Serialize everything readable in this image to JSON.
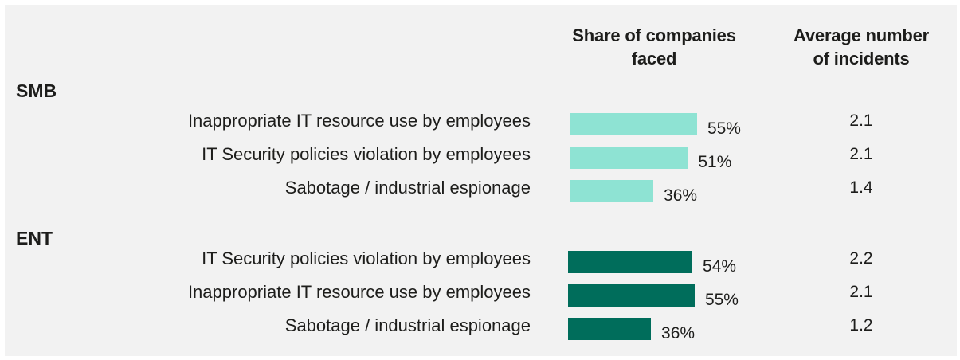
{
  "headers": {
    "share_line1": "Share of companies",
    "share_line2": "faced",
    "avg_line1": "Average number",
    "avg_line2": "of incidents"
  },
  "colors": {
    "smb_bar": "#8ee3d3",
    "ent_bar": "#006d5b",
    "background": "#f2f2f2"
  },
  "chart_data": {
    "type": "bar",
    "orientation": "horizontal",
    "xlim": [
      0,
      100
    ],
    "groups": [
      {
        "name": "SMB",
        "color": "#8ee3d3",
        "rows": [
          {
            "label": "Inappropriate IT resource use by employees",
            "value": 55,
            "value_label": "55%",
            "avg_incidents": "2.1"
          },
          {
            "label": "IT Security policies violation by employees",
            "value": 51,
            "value_label": "51%",
            "avg_incidents": "2.1"
          },
          {
            "label": "Sabotage / industrial espionage",
            "value": 36,
            "value_label": "36%",
            "avg_incidents": "1.4"
          }
        ]
      },
      {
        "name": "ENT",
        "color": "#006d5b",
        "rows": [
          {
            "label": "IT Security policies violation by employees",
            "value": 54,
            "value_label": "54%",
            "avg_incidents": "2.2"
          },
          {
            "label": "Inappropriate IT resource use by employees",
            "value": 55,
            "value_label": "55%",
            "avg_incidents": "2.1"
          },
          {
            "label": "Sabotage / industrial espionage",
            "value": 36,
            "value_label": "36%",
            "avg_incidents": "1.2"
          }
        ]
      }
    ]
  }
}
